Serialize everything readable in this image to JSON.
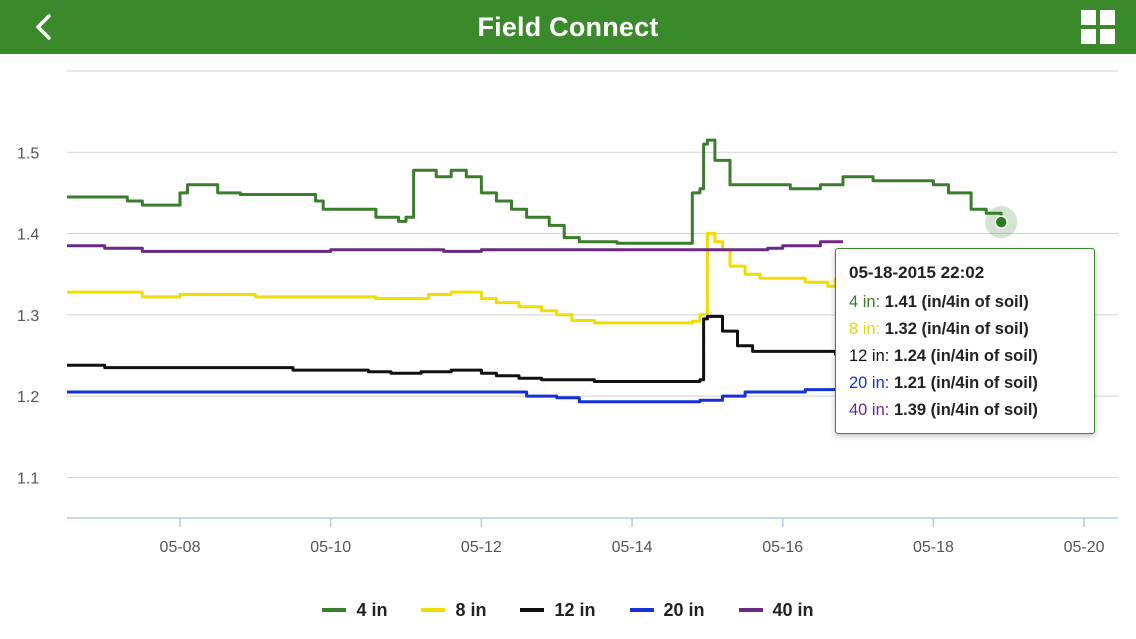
{
  "header": {
    "title": "Field Connect",
    "back_icon": "chevron-left-icon",
    "menu_icon": "grid-icon"
  },
  "tooltip": {
    "date": "05-18-2015 22:02",
    "rows": [
      {
        "label": "4 in",
        "value": "1.41",
        "unit": "(in/4in of soil)",
        "color": "#3a7d2c"
      },
      {
        "label": "8 in",
        "value": "1.32",
        "unit": "(in/4in of soil)",
        "color": "#e8d500"
      },
      {
        "label": "12 in",
        "value": "1.24",
        "unit": "(in/4in of soil)",
        "color": "#111111"
      },
      {
        "label": "20 in",
        "value": "1.21",
        "unit": "(in/4in of soil)",
        "color": "#1530d6"
      },
      {
        "label": "40 in",
        "value": "1.39",
        "unit": "(in/4in of soil)",
        "color": "#6a2a82"
      }
    ]
  },
  "chart_data": {
    "type": "line",
    "title": "",
    "xlabel": "",
    "ylabel": "",
    "xlim": [
      6.5,
      20.45
    ],
    "ylim": [
      1.05,
      1.6
    ],
    "x_ticks": [
      8,
      10,
      12,
      14,
      16,
      18,
      20
    ],
    "x_tick_labels": [
      "05-08",
      "05-10",
      "05-12",
      "05-14",
      "05-16",
      "05-18",
      "05-20"
    ],
    "y_ticks": [
      1.1,
      1.2,
      1.3,
      1.4,
      1.5
    ],
    "y_tick_labels": [
      "1.1",
      "1.2",
      "1.3",
      "1.4",
      "1.5"
    ],
    "grid": true,
    "legend": "bottom",
    "highlight": {
      "series": "4 in",
      "x": 18.9,
      "y": 1.414
    },
    "series": [
      {
        "name": "4 in",
        "color": "#3a7d2c",
        "points": [
          [
            6.5,
            1.445
          ],
          [
            7.0,
            1.445
          ],
          [
            7.3,
            1.44
          ],
          [
            7.5,
            1.435
          ],
          [
            7.9,
            1.435
          ],
          [
            8.0,
            1.45
          ],
          [
            8.1,
            1.46
          ],
          [
            8.3,
            1.46
          ],
          [
            8.5,
            1.45
          ],
          [
            8.8,
            1.448
          ],
          [
            9.0,
            1.448
          ],
          [
            9.2,
            1.448
          ],
          [
            9.5,
            1.448
          ],
          [
            9.8,
            1.44
          ],
          [
            9.9,
            1.43
          ],
          [
            10.2,
            1.43
          ],
          [
            10.5,
            1.43
          ],
          [
            10.6,
            1.42
          ],
          [
            10.9,
            1.415
          ],
          [
            11.0,
            1.42
          ],
          [
            11.1,
            1.478
          ],
          [
            11.4,
            1.47
          ],
          [
            11.6,
            1.478
          ],
          [
            11.8,
            1.47
          ],
          [
            12.0,
            1.45
          ],
          [
            12.2,
            1.44
          ],
          [
            12.4,
            1.43
          ],
          [
            12.6,
            1.42
          ],
          [
            12.9,
            1.41
          ],
          [
            13.1,
            1.395
          ],
          [
            13.3,
            1.39
          ],
          [
            13.5,
            1.39
          ],
          [
            13.8,
            1.388
          ],
          [
            14.0,
            1.388
          ],
          [
            14.2,
            1.388
          ],
          [
            14.4,
            1.388
          ],
          [
            14.7,
            1.388
          ],
          [
            14.8,
            1.45
          ],
          [
            14.9,
            1.455
          ],
          [
            14.95,
            1.51
          ],
          [
            15.0,
            1.515
          ],
          [
            15.1,
            1.49
          ],
          [
            15.3,
            1.46
          ],
          [
            15.6,
            1.46
          ],
          [
            15.8,
            1.46
          ],
          [
            16.0,
            1.46
          ],
          [
            16.1,
            1.455
          ],
          [
            16.3,
            1.455
          ],
          [
            16.5,
            1.46
          ],
          [
            16.8,
            1.47
          ],
          [
            17.0,
            1.47
          ],
          [
            17.2,
            1.465
          ],
          [
            17.5,
            1.465
          ],
          [
            17.8,
            1.465
          ],
          [
            18.0,
            1.46
          ],
          [
            18.2,
            1.45
          ],
          [
            18.5,
            1.43
          ],
          [
            18.7,
            1.425
          ],
          [
            18.9,
            1.414
          ]
        ]
      },
      {
        "name": "8 in",
        "color": "#f2dd00",
        "points": [
          [
            6.5,
            1.328
          ],
          [
            7.0,
            1.328
          ],
          [
            7.5,
            1.322
          ],
          [
            7.9,
            1.322
          ],
          [
            8.0,
            1.325
          ],
          [
            8.3,
            1.325
          ],
          [
            8.5,
            1.325
          ],
          [
            9.0,
            1.322
          ],
          [
            9.5,
            1.322
          ],
          [
            10.0,
            1.322
          ],
          [
            10.3,
            1.322
          ],
          [
            10.6,
            1.32
          ],
          [
            11.0,
            1.32
          ],
          [
            11.3,
            1.325
          ],
          [
            11.6,
            1.328
          ],
          [
            12.0,
            1.32
          ],
          [
            12.2,
            1.315
          ],
          [
            12.5,
            1.31
          ],
          [
            12.8,
            1.305
          ],
          [
            13.0,
            1.3
          ],
          [
            13.2,
            1.293
          ],
          [
            13.5,
            1.29
          ],
          [
            14.0,
            1.29
          ],
          [
            14.5,
            1.29
          ],
          [
            14.8,
            1.292
          ],
          [
            14.9,
            1.3
          ],
          [
            15.0,
            1.4
          ],
          [
            15.1,
            1.39
          ],
          [
            15.2,
            1.38
          ],
          [
            15.3,
            1.36
          ],
          [
            15.5,
            1.35
          ],
          [
            15.7,
            1.345
          ],
          [
            16.0,
            1.345
          ],
          [
            16.3,
            1.34
          ],
          [
            16.6,
            1.335
          ],
          [
            16.7,
            1.345
          ]
        ]
      },
      {
        "name": "12 in",
        "color": "#111111",
        "points": [
          [
            6.5,
            1.238
          ],
          [
            7.0,
            1.235
          ],
          [
            7.5,
            1.235
          ],
          [
            8.0,
            1.235
          ],
          [
            8.5,
            1.235
          ],
          [
            9.0,
            1.235
          ],
          [
            9.5,
            1.232
          ],
          [
            10.0,
            1.232
          ],
          [
            10.5,
            1.23
          ],
          [
            10.8,
            1.228
          ],
          [
            11.2,
            1.23
          ],
          [
            11.6,
            1.232
          ],
          [
            12.0,
            1.228
          ],
          [
            12.2,
            1.225
          ],
          [
            12.5,
            1.222
          ],
          [
            12.8,
            1.22
          ],
          [
            13.0,
            1.22
          ],
          [
            13.5,
            1.218
          ],
          [
            14.0,
            1.218
          ],
          [
            14.5,
            1.218
          ],
          [
            14.8,
            1.218
          ],
          [
            14.9,
            1.22
          ],
          [
            14.95,
            1.295
          ],
          [
            15.0,
            1.298
          ],
          [
            15.2,
            1.28
          ],
          [
            15.4,
            1.262
          ],
          [
            15.6,
            1.255
          ],
          [
            16.0,
            1.255
          ],
          [
            16.4,
            1.255
          ],
          [
            16.7,
            1.25
          ]
        ]
      },
      {
        "name": "20 in",
        "color": "#1530d6",
        "points": [
          [
            6.5,
            1.205
          ],
          [
            7.0,
            1.205
          ],
          [
            8.0,
            1.205
          ],
          [
            9.0,
            1.205
          ],
          [
            10.0,
            1.205
          ],
          [
            11.0,
            1.205
          ],
          [
            12.0,
            1.205
          ],
          [
            12.4,
            1.205
          ],
          [
            12.6,
            1.2
          ],
          [
            13.0,
            1.198
          ],
          [
            13.3,
            1.193
          ],
          [
            13.6,
            1.193
          ],
          [
            14.0,
            1.193
          ],
          [
            14.5,
            1.193
          ],
          [
            14.9,
            1.195
          ],
          [
            15.2,
            1.2
          ],
          [
            15.5,
            1.205
          ],
          [
            16.0,
            1.205
          ],
          [
            16.3,
            1.208
          ],
          [
            16.7,
            1.21
          ]
        ]
      },
      {
        "name": "40 in",
        "color": "#6a2a82",
        "points": [
          [
            6.5,
            1.385
          ],
          [
            7.0,
            1.382
          ],
          [
            7.5,
            1.378
          ],
          [
            8.0,
            1.378
          ],
          [
            8.5,
            1.378
          ],
          [
            9.0,
            1.378
          ],
          [
            9.5,
            1.378
          ],
          [
            10.0,
            1.38
          ],
          [
            10.5,
            1.38
          ],
          [
            11.0,
            1.38
          ],
          [
            11.5,
            1.378
          ],
          [
            12.0,
            1.38
          ],
          [
            12.5,
            1.38
          ],
          [
            13.0,
            1.38
          ],
          [
            13.5,
            1.38
          ],
          [
            14.0,
            1.38
          ],
          [
            14.5,
            1.38
          ],
          [
            15.0,
            1.38
          ],
          [
            15.5,
            1.38
          ],
          [
            15.8,
            1.382
          ],
          [
            16.0,
            1.385
          ],
          [
            16.5,
            1.39
          ],
          [
            16.8,
            1.39
          ]
        ]
      }
    ]
  }
}
